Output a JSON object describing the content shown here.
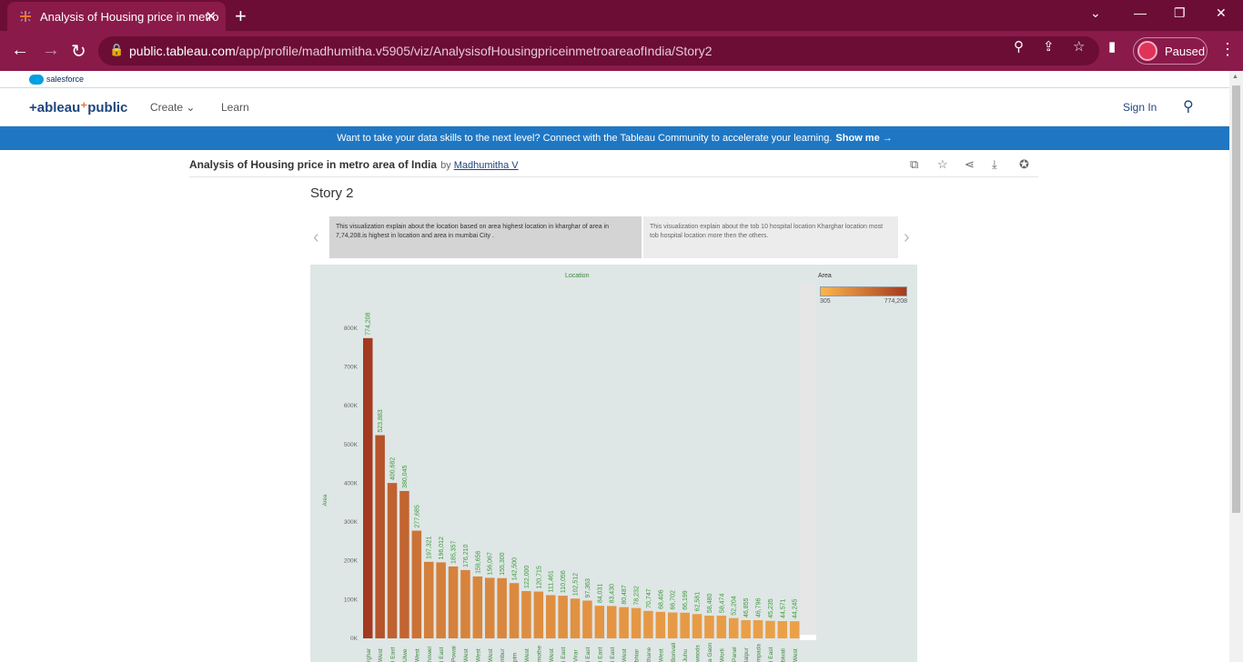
{
  "browser": {
    "tab_title": "Analysis of Housing price in metro",
    "url_host": "public.tableau.com",
    "url_path": "/app/profile/madhumitha.v5905/viz/AnalysisofHousingpriceinmetroareaofIndia/Story2",
    "profile_label": "Paused"
  },
  "salesforce": {
    "label": "salesforce"
  },
  "nav": {
    "create": "Create",
    "learn": "Learn",
    "sign_in": "Sign In"
  },
  "banner": {
    "text": "Want to take your data skills to the next level? Connect with the Tableau Community to accelerate your learning.",
    "cta": "Show me →"
  },
  "viz": {
    "title": "Analysis of Housing price in metro area of India",
    "by": "by",
    "author": "Madhumitha V"
  },
  "story": {
    "title": "Story 2",
    "points": [
      "This visualization explain about the location based on area highest location in kharghar of area in 7,74,208.is highest in  location and area in mumbai City .",
      "This visualization explain about the tob 10 hospital location Kharghar location most tob hospital location more then the others."
    ]
  },
  "legend": {
    "title": "Area",
    "min": "305",
    "max": "774,208",
    "color_min": "#fbb650",
    "color_max": "#a33a20"
  },
  "chart_data": {
    "type": "bar",
    "title": "Location",
    "ylabel": "Area",
    "ylim": [
      0,
      870000
    ],
    "yticks": [
      "0K",
      "100K",
      "200K",
      "300K",
      "400K",
      "500K",
      "600K",
      "700K",
      "800K"
    ],
    "categories": [
      "rghar",
      "West",
      "i East",
      "Ulwe",
      "West",
      "hnwel",
      "i East",
      "Powai",
      "West",
      "West",
      "West",
      "mbur",
      "pim",
      "West",
      "mothe",
      "West",
      "i East",
      "Virar",
      "i East",
      "i East",
      "i East",
      "West",
      "bhiar",
      "thane",
      "West",
      "Borivali",
      "Juhu",
      "woods",
      "a Gaon",
      "Worli",
      "Panel",
      "lalpur",
      "mpada",
      "i East",
      "bivali",
      "West"
    ],
    "values": [
      774208,
      523883,
      400682,
      380045,
      277685,
      197321,
      196012,
      185357,
      176210,
      159656,
      156067,
      155300,
      142500,
      122000,
      120715,
      111461,
      110056,
      102512,
      97363,
      84031,
      83430,
      80487,
      78232,
      70747,
      68406,
      66702,
      66199,
      62581,
      58480,
      58474,
      52204,
      46855,
      46796,
      45235,
      44571,
      44245
    ],
    "labels": [
      "774,208",
      "523,883",
      "400,682",
      "380,045",
      "277,685",
      "197,321",
      "196,012",
      "185,357",
      "176,210",
      "159,656",
      "156,067",
      "155,300",
      "142,500",
      "122,000",
      "120,715",
      "111,461",
      "110,056",
      "102,512",
      "97,363",
      "84,031",
      "83,430",
      "80,487",
      "78,232",
      "70,747",
      "68,406",
      "66,702",
      "66,199",
      "62,581",
      "58,480",
      "58,474",
      "52,204",
      "46,855",
      "46,796",
      "45,235",
      "44,571",
      "44,245"
    ],
    "grid": false
  }
}
